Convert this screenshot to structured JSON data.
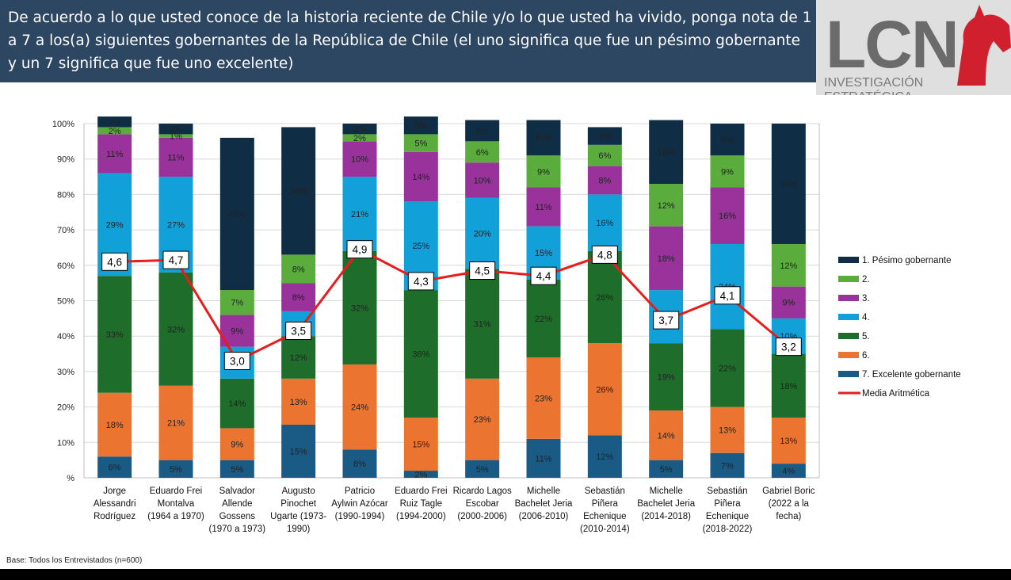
{
  "header": {
    "title": "De acuerdo a lo que usted conoce de la historia reciente de Chile y/o lo que usted ha vivido, ponga nota de 1 a 7 a los(a) siguientes gobernantes de la República de Chile (el uno significa que fue un pésimo gobernante y un 7 significa que fue uno excelente)"
  },
  "logo": {
    "text": "LCN",
    "tagline": "INVESTIGACIÓN ESTRATÉGICA"
  },
  "footer": {
    "base": "Base: Todos los Entrevistados (n=600)"
  },
  "colors": {
    "s1": "#0f2d45",
    "s2": "#5aad3c",
    "s3": "#99339b",
    "s4": "#12a0d8",
    "s5": "#1e6d2a",
    "s6": "#eb7431",
    "s7": "#1a5b85",
    "mean": "#e81c1c"
  },
  "chart_data": {
    "type": "bar",
    "stacked": true,
    "ylim": [
      0,
      100
    ],
    "yticks": [
      "%",
      "10%",
      "20%",
      "30%",
      "40%",
      "50%",
      "60%",
      "70%",
      "80%",
      "90%",
      "100%"
    ],
    "categories": [
      [
        "Jorge",
        "Alessandri",
        "Rodríguez"
      ],
      [
        "Eduardo Frei",
        "Montalva",
        "(1964 a 1970)"
      ],
      [
        "Salvador",
        "Allende",
        "Gossens",
        "(1970 a 1973)"
      ],
      [
        "Augusto",
        "Pinochet",
        "Ugarte (1973-",
        "1990)"
      ],
      [
        "Patricio",
        "Aylwin Azócar",
        "(1990-1994)"
      ],
      [
        "Eduardo Frei",
        "Ruiz Tagle",
        "(1994-2000)"
      ],
      [
        "Ricardo Lagos",
        "Escobar",
        "(2000-2006)"
      ],
      [
        "Michelle",
        "Bachelet Jeria",
        "(2006-2010)"
      ],
      [
        "Sebastián",
        "Piñera",
        "Echenique",
        "(2010-2014)"
      ],
      [
        "Michelle",
        "Bachelet Jeria",
        "(2014-2018)"
      ],
      [
        "Sebastián",
        "Piñera",
        "Echenique",
        "(2018-2022)"
      ],
      [
        "Gabriel Boric",
        "(2022 a la",
        "fecha)"
      ]
    ],
    "series": [
      {
        "name": "7. Excelente gobernante",
        "color": "#1a5b85",
        "values": [
          6,
          5,
          5,
          15,
          8,
          2,
          5,
          11,
          12,
          5,
          7,
          4
        ],
        "labels": [
          "6%",
          "5%",
          "5%",
          "15%",
          "8%",
          "2%",
          "5%",
          "11%",
          "12%",
          "5%",
          "7%",
          "4%"
        ]
      },
      {
        "name": "6.",
        "color": "#eb7431",
        "values": [
          18,
          21,
          9,
          13,
          24,
          15,
          23,
          23,
          26,
          14,
          13,
          13
        ],
        "labels": [
          "18%",
          "21%",
          "9%",
          "13%",
          "24%",
          "15%",
          "23%",
          "23%",
          "26%",
          "14%",
          "13%",
          "13%"
        ]
      },
      {
        "name": "5.",
        "color": "#1e6d2a",
        "values": [
          33,
          32,
          14,
          12,
          32,
          36,
          31,
          22,
          26,
          19,
          22,
          18
        ],
        "labels": [
          "33%",
          "32%",
          "14%",
          "12%",
          "32%",
          "36%",
          "31%",
          "22%",
          "26%",
          "19%",
          "22%",
          "18%"
        ]
      },
      {
        "name": "4.",
        "color": "#12a0d8",
        "values": [
          29,
          27,
          9,
          7,
          21,
          25,
          20,
          15,
          16,
          15,
          24,
          10
        ],
        "labels": [
          "29%",
          "27%",
          "",
          "",
          "21%",
          "25%",
          "20%",
          "15%",
          "16%",
          "",
          "24%",
          "10%"
        ]
      },
      {
        "name": "3.",
        "color": "#99339b",
        "values": [
          11,
          11,
          9,
          8,
          10,
          14,
          10,
          11,
          8,
          18,
          16,
          9
        ],
        "labels": [
          "11%",
          "11%",
          "9%",
          "8%",
          "10%",
          "14%",
          "10%",
          "11%",
          "8%",
          "18%",
          "16%",
          "9%"
        ]
      },
      {
        "name": "2.",
        "color": "#5aad3c",
        "values": [
          2,
          1,
          7,
          8,
          2,
          5,
          6,
          9,
          6,
          12,
          9,
          12
        ],
        "labels": [
          "2%",
          "1%",
          "7%",
          "8%",
          "2%",
          "5%",
          "6%",
          "9%",
          "6%",
          "12%",
          "9%",
          "12%"
        ]
      },
      {
        "name": "1. Pésimo gobernante",
        "color": "#0f2d45",
        "values": [
          3,
          3,
          43,
          36,
          3,
          5,
          6,
          10,
          5,
          18,
          9,
          34
        ],
        "labels": [
          "3%",
          "3%",
          "43%",
          "36%",
          "3%",
          "5%",
          "6%",
          "10%",
          "5%",
          "18%",
          "9%",
          "34%"
        ]
      }
    ],
    "mean_series": {
      "name": "Media Aritmética",
      "color": "#e81c1c",
      "values": [
        4.6,
        4.7,
        3.0,
        3.5,
        4.9,
        4.3,
        4.5,
        4.4,
        4.8,
        3.7,
        4.1,
        3.2
      ],
      "labels": [
        "4,6",
        "4,7",
        "3,0",
        "3,5",
        "4,9",
        "4,3",
        "4,5",
        "4,4",
        "4,8",
        "3,7",
        "4,1",
        "3,2"
      ],
      "plot_percent": [
        61,
        61.5,
        33,
        41.5,
        64.5,
        55.5,
        58.5,
        57,
        63,
        44.5,
        51.5,
        37
      ]
    },
    "legend": {
      "position": "right",
      "order": [
        "1. Pésimo gobernante",
        "2.",
        "3.",
        "4.",
        "5.",
        "6.",
        "7. Excelente gobernante",
        "Media Aritmética"
      ]
    }
  }
}
